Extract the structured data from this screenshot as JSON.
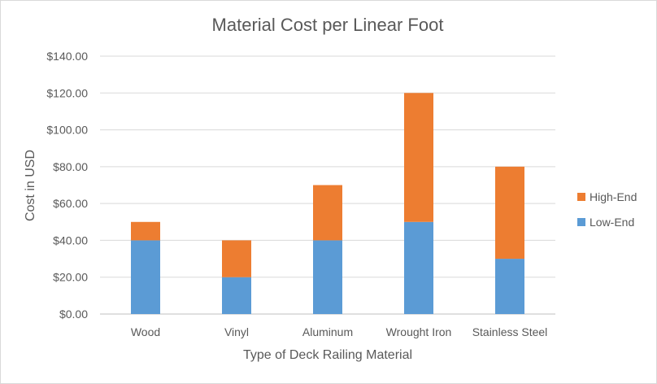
{
  "chart_data": {
    "type": "bar",
    "stacked": true,
    "title": "Material Cost per Linear Foot",
    "xlabel": "Type of Deck Railing Material",
    "ylabel": "Cost in USD",
    "categories": [
      "Wood",
      "Vinyl",
      "Aluminum",
      "Wrought Iron",
      "Stainless Steel"
    ],
    "series": [
      {
        "name": "Low-End",
        "color": "#5b9bd5",
        "values": [
          40,
          20,
          40,
          50,
          30
        ]
      },
      {
        "name": "High-End",
        "color": "#ed7d31",
        "values": [
          10,
          20,
          30,
          70,
          50
        ]
      }
    ],
    "ylim": [
      0,
      140
    ],
    "yticks": [
      "$0.00",
      "$20.00",
      "$40.00",
      "$60.00",
      "$80.00",
      "$100.00",
      "$120.00",
      "$140.00"
    ],
    "grid": true,
    "legend_position": "right"
  }
}
